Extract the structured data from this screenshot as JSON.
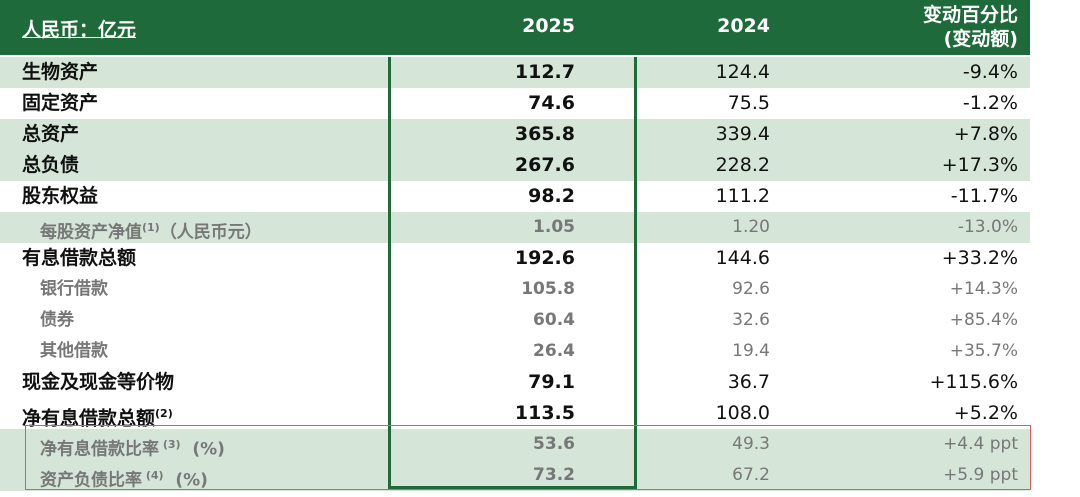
{
  "header": {
    "unit": "人民币：亿元",
    "col1": "2025",
    "col2": "2024",
    "col3_line1": "变动百分比",
    "col3_line2": "(变动额)"
  },
  "rows": [
    {
      "label": "生物资产",
      "v2025": "112.7",
      "v2024": "124.4",
      "change": "-9.4%"
    },
    {
      "label": "固定资产",
      "v2025": "74.6",
      "v2024": "75.5",
      "change": "-1.2%"
    },
    {
      "label": "总资产",
      "v2025": "365.8",
      "v2024": "339.4",
      "change": "+7.8%"
    },
    {
      "label": "总负债",
      "v2025": "267.6",
      "v2024": "228.2",
      "change": "+17.3%"
    },
    {
      "label": "股东权益",
      "v2025": "98.2",
      "v2024": "111.2",
      "change": "-11.7%"
    },
    {
      "label": "每股资产净值",
      "note": "(1)",
      "suffix": "（人民币元）",
      "v2025": "1.05",
      "v2024": "1.20",
      "change": "-13.0%"
    },
    {
      "label": "有息借款总额",
      "v2025": "192.6",
      "v2024": "144.6",
      "change": "+33.2%"
    },
    {
      "label": "银行借款",
      "v2025": "105.8",
      "v2024": "92.6",
      "change": "+14.3%"
    },
    {
      "label": "债券",
      "v2025": "60.4",
      "v2024": "32.6",
      "change": "+85.4%"
    },
    {
      "label": "其他借款",
      "v2025": "26.4",
      "v2024": "19.4",
      "change": "+35.7%"
    },
    {
      "label": "现金及现金等价物",
      "v2025": "79.1",
      "v2024": "36.7",
      "change": "+115.6%"
    },
    {
      "label": "净有息借款总额",
      "note": "(2)",
      "v2025": "113.5",
      "v2024": "108.0",
      "change": "+5.2%"
    },
    {
      "label": "净有息借款比率",
      "note": " (3)",
      "suffix": "  (%)",
      "v2025": "53.6",
      "v2024": "49.3",
      "change": "+4.4 ppt"
    },
    {
      "label": "资产负债比率",
      "note": " (4)",
      "suffix": "  (%)",
      "v2025": "73.2",
      "v2024": "67.2",
      "change": "+5.9 ppt"
    }
  ]
}
